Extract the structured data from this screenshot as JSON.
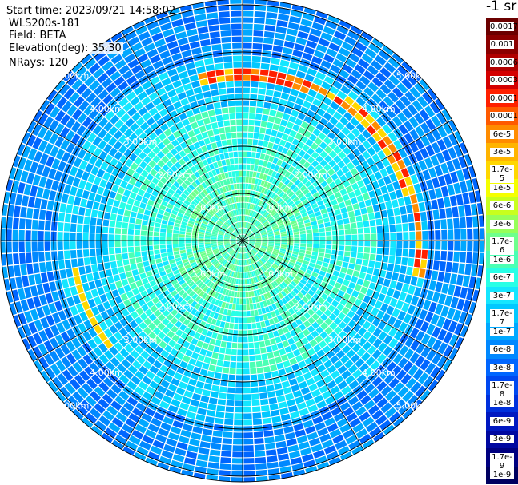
{
  "header": {
    "start_time": "Start time: 2023/09/21 14:58:02",
    "device": "WLS200s-181",
    "field": "Field: BETA",
    "elevation": "Elevation(deg): 35.30",
    "nrays": "NRays: 120"
  },
  "colorbar": {
    "title": "-1 sr",
    "labels": [
      "0.0017",
      "0.001",
      "0.0006",
      "0.0003",
      "0.00017",
      "0.0001",
      "6e-5",
      "3e-5",
      "1.7e-5",
      "1e-5",
      "6e-6",
      "3e-6",
      "1.7e-6",
      "1e-6",
      "6e-7",
      "3e-7",
      "1.7e-7",
      "1e-7",
      "6e-8",
      "3e-8",
      "1.7e-8",
      "1e-8",
      "6e-9",
      "3e-9",
      "1.7e-9",
      "1e-9"
    ],
    "colors": [
      "#6b0000",
      "#8b0000",
      "#b00000",
      "#d40000",
      "#ff2000",
      "#ff5a00",
      "#ff8c00",
      "#ffb400",
      "#ffd700",
      "#f5ff00",
      "#c8ff1e",
      "#96ff5a",
      "#6eff8c",
      "#4bffb4",
      "#28ffe6",
      "#14e6ff",
      "#00c8ff",
      "#00a8ff",
      "#0088ff",
      "#0066ff",
      "#0048f0",
      "#0030dc",
      "#0018c0",
      "#0008a0",
      "#000080",
      "#000060"
    ]
  },
  "map": {
    "range_labels": [
      "1.00km",
      "2.00km",
      "3.00km",
      "4.00km",
      "5.00km"
    ],
    "n_rays": 120,
    "ring_colors": [
      "#6eff8c",
      "#4bffb4",
      "#28ffe6",
      "#14e6ff",
      "#00c8ff",
      "#00a8ff",
      "#0088ff",
      "#0066ff",
      "#0048f0"
    ],
    "band_colors": [
      "#ffd700",
      "#ff8c00",
      "#ff2000"
    ]
  }
}
